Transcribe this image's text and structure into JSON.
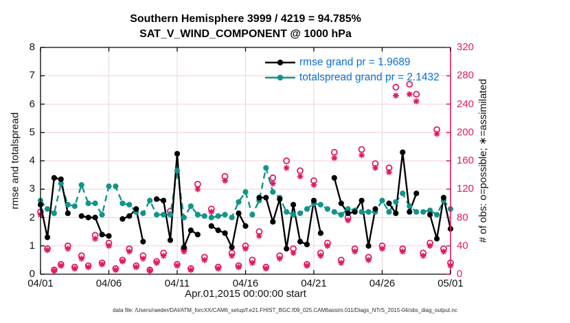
{
  "chart_data": {
    "type": "line",
    "title_line1": "Southern Hemisphere 3999 / 4219 = 94.785%",
    "title_line2": "SAT_V_WIND_COMPONENT @ 1000 hPa",
    "xlabel": "Apr.01,2015 00:00:00 start",
    "ylabel_left": "rmse and totalspread",
    "ylabel_right": "# of obs: o=possible; ∗=assimilated",
    "caption": "data file: /Users/raeder/DAI/ATM_forcXX/CAM6_setup/f.e21.FHIST_BGC.f09_025.CAM6assim.011/Diags_NTrS_2015-04/obs_diag_output.nc",
    "legend": {
      "rmse_label": "rmse grand pr = 1.9689",
      "totalspread_label": "totalspread grand pr = 2.1432"
    },
    "x_ticks": [
      "04/01",
      "04/06",
      "04/11",
      "04/16",
      "04/21",
      "04/26",
      "05/01"
    ],
    "x_tick_days": [
      0,
      5,
      10,
      15,
      20,
      25,
      30
    ],
    "x_range_days": [
      0,
      30
    ],
    "ylim_left": [
      0,
      8
    ],
    "yticks_left": [
      0,
      1,
      2,
      3,
      4,
      5,
      6,
      7,
      8
    ],
    "ylim_right": [
      0,
      320
    ],
    "yticks_right": [
      0,
      40,
      80,
      120,
      160,
      200,
      240,
      280,
      320
    ],
    "grid": "on",
    "legend_position": "top-center-inside",
    "colors": {
      "rmse": "#000000",
      "totalspread": "#11948a",
      "obs": "#e01a63",
      "legend_text": "#0e6fd0",
      "grid_h": "#f7ccd6",
      "grid_v": "#e2dada"
    },
    "series": {
      "x_start_day": 0,
      "x_step": 0.5,
      "rmse": [
        2.45,
        1.3,
        3.4,
        3.35,
        2.15,
        null,
        2.05,
        2.0,
        2.0,
        1.4,
        1.35,
        null,
        1.95,
        2.05,
        2.3,
        1.15,
        null,
        2.65,
        2.6,
        1.2,
        4.25,
        0.95,
        1.55,
        1.4,
        null,
        1.7,
        1.55,
        1.45,
        0.95,
        2.15,
        1.7,
        null,
        2.7,
        2.7,
        1.85,
        2.65,
        0.9,
        2.45,
        1.15,
        1.05,
        2.6,
        1.45,
        null,
        3.4,
        2.5,
        2.15,
        2.2,
        2.6,
        1.0,
        2.3,
        null,
        2.5,
        2.15,
        4.3,
        2.2,
        2.85,
        null,
        2.1,
        1.25,
        2.7,
        1.6
      ],
      "totalspread": [
        2.6,
        2.3,
        2.15,
        3.2,
        2.45,
        2.4,
        3.15,
        2.5,
        2.5,
        2.1,
        3.1,
        3.1,
        2.5,
        2.45,
        2.2,
        2.15,
        2.6,
        2.1,
        2.1,
        2.1,
        3.65,
        2.0,
        2.4,
        2.1,
        2.05,
        2.0,
        2.05,
        2.1,
        2.0,
        2.55,
        2.9,
        2.1,
        2.6,
        3.75,
        2.9,
        2.7,
        2.2,
        2.1,
        2.15,
        2.3,
        2.5,
        2.45,
        2.3,
        2.2,
        2.1,
        2.3,
        2.25,
        2.2,
        2.2,
        2.2,
        2.6,
        2.2,
        2.55,
        2.85,
        2.4,
        2.2,
        2.2,
        2.25,
        2.1,
        2.6,
        2.3
      ],
      "possible": [
        88,
        36,
        6,
        14,
        40,
        10,
        26,
        12,
        55,
        16,
        44,
        8,
        20,
        36,
        12,
        26,
        6,
        18,
        30,
        89,
        14,
        36,
        8,
        127,
        24,
        92,
        10,
        138,
        30,
        12,
        40,
        20,
        60,
        10,
        136,
        26,
        160,
        36,
        146,
        14,
        132,
        30,
        44,
        172,
        20,
        80,
        36,
        176,
        24,
        156,
        40,
        150,
        264,
        36,
        268,
        254,
        30,
        44,
        204,
        36,
        16
      ],
      "assimilated": [
        84,
        34,
        5,
        12,
        36,
        8,
        22,
        10,
        50,
        14,
        40,
        6,
        18,
        32,
        10,
        22,
        5,
        16,
        26,
        85,
        12,
        32,
        6,
        120,
        20,
        88,
        8,
        132,
        26,
        10,
        36,
        16,
        54,
        8,
        128,
        22,
        150,
        30,
        138,
        12,
        126,
        26,
        40,
        164,
        16,
        76,
        32,
        168,
        20,
        150,
        36,
        144,
        252,
        32,
        254,
        244,
        26,
        40,
        198,
        32,
        12
      ]
    }
  }
}
